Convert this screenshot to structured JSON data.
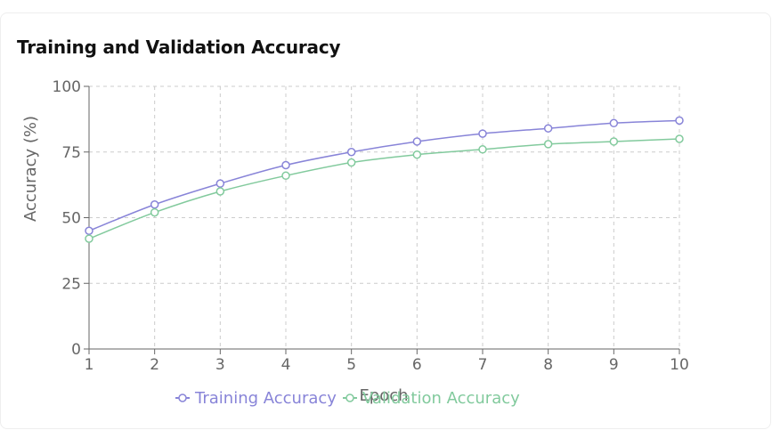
{
  "chart_data": {
    "type": "line",
    "title": "Training and Validation Accuracy",
    "xlabel": "Epoch",
    "ylabel": "Accuracy (%)",
    "x": [
      1,
      2,
      3,
      4,
      5,
      6,
      7,
      8,
      9,
      10
    ],
    "xticks": [
      "1",
      "2",
      "3",
      "4",
      "5",
      "6",
      "7",
      "8",
      "9",
      "10"
    ],
    "yticks": [
      "0",
      "25",
      "50",
      "75",
      "100"
    ],
    "ylim": [
      0,
      100
    ],
    "grid": true,
    "legend_position": "bottom",
    "series": [
      {
        "name": "Training Accuracy",
        "color": "#8884d8",
        "values": [
          45,
          55,
          63,
          70,
          75,
          79,
          82,
          84,
          86,
          87
        ]
      },
      {
        "name": "Validation Accuracy",
        "color": "#82ca9d",
        "values": [
          42,
          52,
          60,
          66,
          71,
          74,
          76,
          78,
          79,
          80
        ]
      }
    ]
  }
}
